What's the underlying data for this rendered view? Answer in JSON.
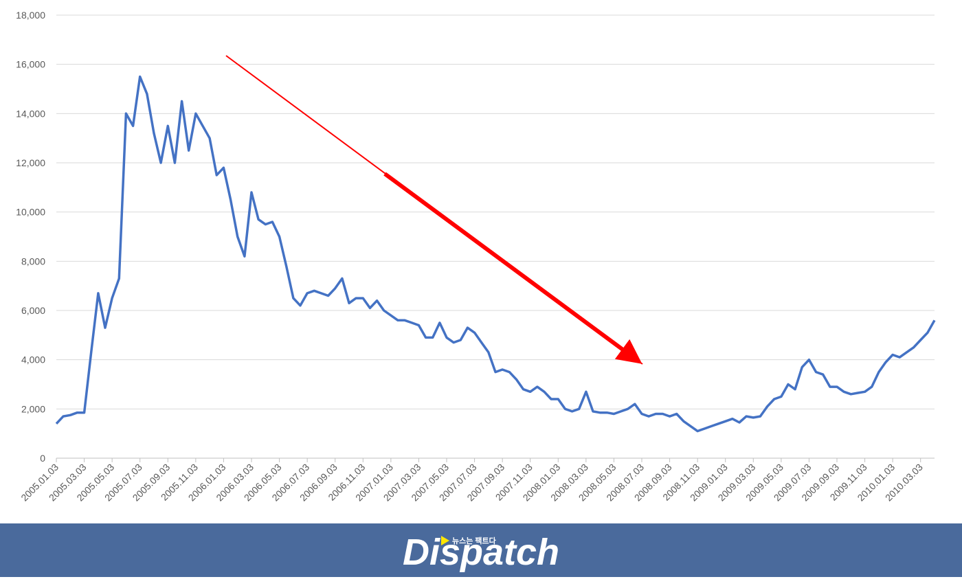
{
  "chart_data": {
    "type": "line",
    "categories": [
      "2005.01.03",
      null,
      null,
      null,
      "2005.03.03",
      null,
      null,
      null,
      "2005.05.03",
      null,
      null,
      null,
      "2005.07.03",
      null,
      null,
      null,
      "2005.09.03",
      null,
      null,
      null,
      "2005.11.03",
      null,
      null,
      null,
      "2006.01.03",
      null,
      null,
      null,
      "2006.03.03",
      null,
      null,
      null,
      "2006.05.03",
      null,
      null,
      null,
      "2006.07.03",
      null,
      null,
      null,
      "2006.09.03",
      null,
      null,
      null,
      "2006.11.03",
      null,
      null,
      null,
      "2007.01.03",
      null,
      null,
      null,
      "2007.03.03",
      null,
      null,
      null,
      "2007.05.03",
      null,
      null,
      null,
      "2007.07.03",
      null,
      null,
      null,
      "2007.09.03",
      null,
      null,
      null,
      "2007.11.03",
      null,
      null,
      null,
      "2008.01.03",
      null,
      null,
      null,
      "2008.03.03",
      null,
      null,
      null,
      "2008.05.03",
      null,
      null,
      null,
      "2008.07.03",
      null,
      null,
      null,
      "2008.09.03",
      null,
      null,
      null,
      "2008.11.03",
      null,
      null,
      null,
      "2009.01.03",
      null,
      null,
      null,
      "2009.03.03",
      null,
      null,
      null,
      "2009.05.03",
      null,
      null,
      null,
      "2009.07.03",
      null,
      null,
      null,
      "2009.09.03",
      null,
      null,
      null,
      "2009.11.03",
      null,
      null,
      null,
      "2010.01.03",
      null,
      null,
      null,
      "2010.03.03",
      null,
      null
    ],
    "values": [
      1400,
      1700,
      1750,
      1850,
      1850,
      4300,
      6700,
      5300,
      6500,
      7300,
      14000,
      13500,
      15500,
      14800,
      13200,
      12000,
      13500,
      12000,
      14500,
      12500,
      14000,
      13500,
      13000,
      11500,
      11800,
      10500,
      9000,
      8200,
      10800,
      9700,
      9500,
      9600,
      9000,
      7800,
      6500,
      6200,
      6700,
      6800,
      6700,
      6600,
      6900,
      7300,
      6300,
      6500,
      6500,
      6100,
      6400,
      6000,
      5800,
      5600,
      5600,
      5500,
      5400,
      4900,
      4900,
      5500,
      4900,
      4700,
      4800,
      5300,
      5100,
      4700,
      4300,
      3500,
      3600,
      3500,
      3200,
      2800,
      2700,
      2900,
      2700,
      2400,
      2400,
      2000,
      1900,
      2000,
      2700,
      1900,
      1850,
      1850,
      1800,
      1900,
      2000,
      2200,
      1800,
      1700,
      1800,
      1800,
      1700,
      1800,
      1500,
      1300,
      1100,
      1200,
      1300,
      1400,
      1500,
      1600,
      1450,
      1700,
      1650,
      1700,
      2100,
      2400,
      2500,
      3000,
      2800,
      3700,
      4000,
      3500,
      3400,
      2900,
      2900,
      2700,
      2600,
      2650,
      2700,
      2900,
      3500,
      3900,
      4200,
      4100,
      4300,
      4500,
      4800,
      5100,
      5600
    ],
    "color": "#4472c4",
    "ylim": [
      0,
      18000
    ],
    "yticks": [
      0,
      {
        "value": 2000,
        "label": "2,000"
      },
      {
        "value": 4000,
        "label": "4,000"
      },
      {
        "value": 6000,
        "label": "6,000"
      },
      {
        "value": 8000,
        "label": "8,000"
      },
      {
        "value": 10000,
        "label": "10,000"
      },
      {
        "value": 12000,
        "label": "12,000"
      },
      {
        "value": 14000,
        "label": "14,000"
      },
      {
        "value": 16000,
        "label": "16,000"
      },
      {
        "value": 18000,
        "label": "18,000"
      }
    ],
    "grid": true
  },
  "banner": {
    "logo": "Dispatch",
    "tagline": "뉴스는 팩트다"
  }
}
